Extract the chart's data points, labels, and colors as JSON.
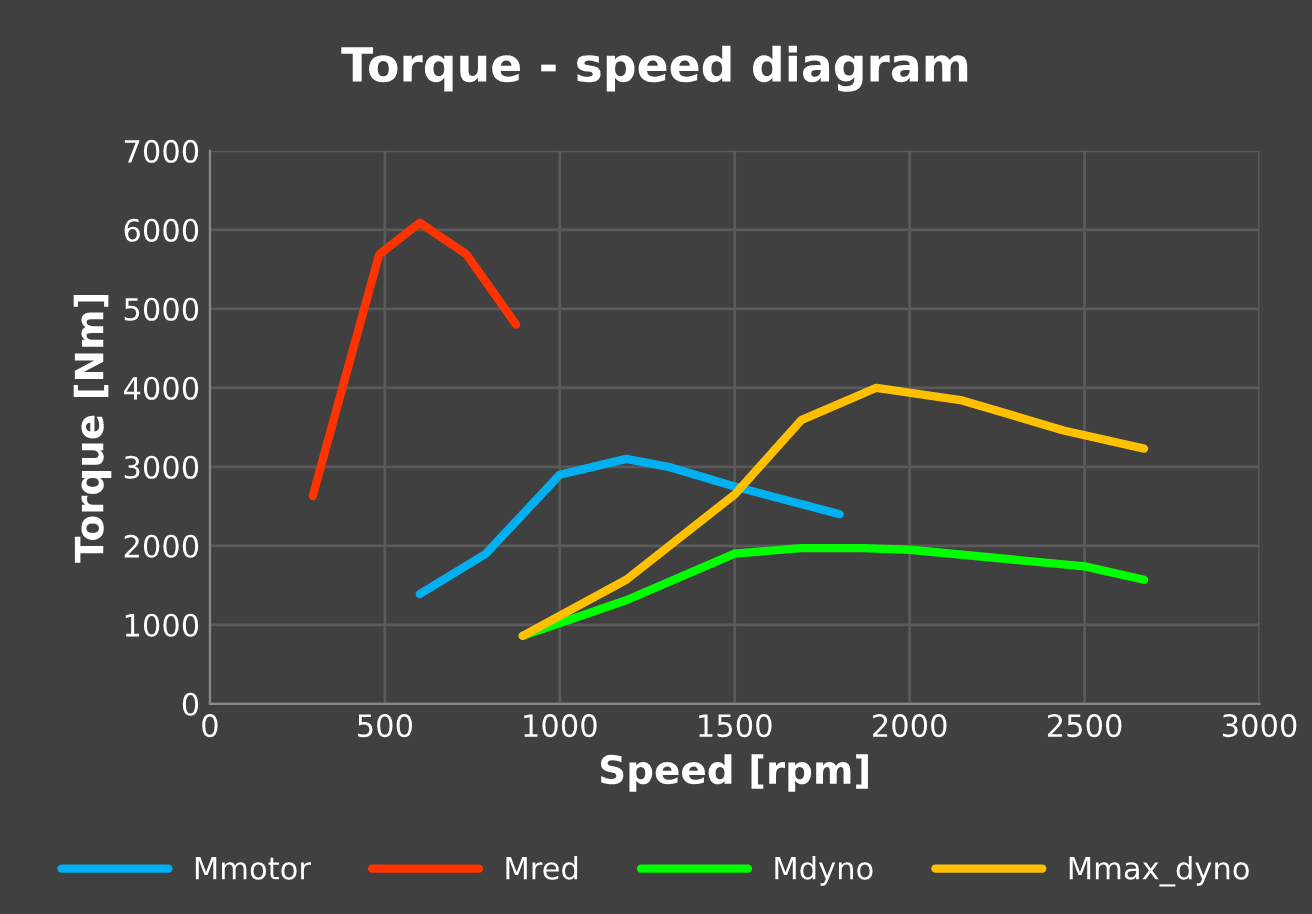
{
  "chart_data": {
    "type": "line",
    "title": "Torque - speed diagram",
    "xlabel": "Speed [rpm]",
    "ylabel": "Torque [Nm]",
    "xlim": [
      0,
      3000
    ],
    "xticks": [
      0,
      500,
      1000,
      1500,
      2000,
      2500,
      3000
    ],
    "ylim": [
      0,
      7000
    ],
    "yticks": [
      0,
      1000,
      2000,
      3000,
      4000,
      5000,
      6000,
      7000
    ],
    "grid": true,
    "legend": "bottom",
    "marker": "none",
    "line_style": "solid",
    "series": [
      {
        "name": "Mmotor",
        "color": "#00b0f0",
        "x": [
          600,
          789,
          1000,
          1190,
          1310,
          1500,
          1800
        ],
        "values": [
          1390,
          1900,
          2900,
          3100,
          3000,
          2750,
          2400
        ]
      },
      {
        "name": "Mred",
        "color": "#ff3300",
        "x": [
          294,
          380,
          484,
          600,
          733,
          875
        ],
        "values": [
          2630,
          4020,
          5690,
          6090,
          5690,
          4800
        ]
      },
      {
        "name": "Mdyno",
        "color": "#00ff00",
        "x": [
          894,
          1190,
          1500,
          1690,
          1865,
          2000,
          2500,
          2670
        ],
        "values": [
          860,
          1310,
          1900,
          1970,
          1970,
          1950,
          1740,
          1570
        ]
      },
      {
        "name": "Mmax_dyno",
        "color": "#ffc000",
        "x": [
          894,
          1190,
          1500,
          1690,
          1905,
          2150,
          2440,
          2670
        ],
        "values": [
          860,
          1570,
          2650,
          3590,
          4000,
          3840,
          3460,
          3230
        ]
      }
    ]
  }
}
